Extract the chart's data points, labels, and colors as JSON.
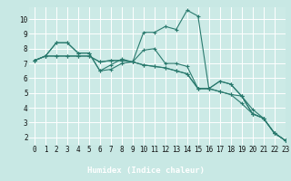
{
  "xlabel": "Humidex (Indice chaleur)",
  "xlim": [
    -0.5,
    23
  ],
  "ylim": [
    1.5,
    10.8
  ],
  "xticks": [
    0,
    1,
    2,
    3,
    4,
    5,
    6,
    7,
    8,
    9,
    10,
    11,
    12,
    13,
    14,
    15,
    16,
    17,
    18,
    19,
    20,
    21,
    22,
    23
  ],
  "yticks": [
    2,
    3,
    4,
    5,
    6,
    7,
    8,
    9,
    10
  ],
  "background_color": "#c8e8e4",
  "plot_bg_color": "#cceae6",
  "grid_color": "#ffffff",
  "bottom_bar_color": "#5a9e96",
  "line_color": "#2a7a6e",
  "series": [
    [
      7.2,
      7.5,
      8.4,
      8.4,
      7.7,
      7.7,
      6.5,
      6.6,
      7.0,
      7.1,
      9.1,
      9.1,
      9.5,
      9.3,
      10.6,
      10.2,
      5.3,
      5.8,
      5.6,
      4.8,
      3.6,
      3.3,
      2.3,
      1.8
    ],
    [
      7.2,
      7.5,
      8.4,
      8.4,
      7.7,
      7.7,
      6.5,
      6.9,
      7.3,
      7.1,
      7.9,
      8.0,
      7.0,
      7.0,
      6.8,
      5.3,
      5.3,
      5.8,
      5.6,
      4.8,
      3.6,
      3.3,
      2.3,
      1.8
    ],
    [
      7.2,
      7.5,
      7.5,
      7.5,
      7.5,
      7.5,
      7.1,
      7.2,
      7.2,
      7.1,
      6.9,
      6.8,
      6.7,
      6.5,
      6.3,
      5.3,
      5.3,
      5.1,
      4.9,
      4.8,
      3.9,
      3.3,
      2.3,
      1.8
    ],
    [
      7.2,
      7.5,
      7.5,
      7.5,
      7.5,
      7.5,
      7.1,
      7.2,
      7.2,
      7.1,
      6.9,
      6.8,
      6.7,
      6.5,
      6.3,
      5.3,
      5.3,
      5.1,
      4.9,
      4.3,
      3.6,
      3.3,
      2.3,
      1.8
    ]
  ],
  "tick_fontsize": 5.5,
  "xlabel_fontsize": 6.5
}
